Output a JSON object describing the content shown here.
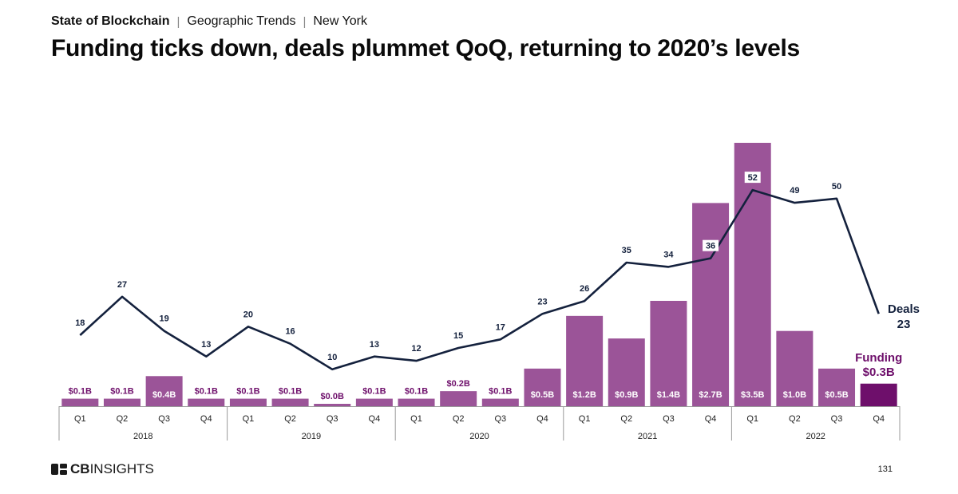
{
  "header": {
    "breadcrumb": [
      "State of Blockchain",
      "Geographic Trends",
      "New York"
    ],
    "title": "Funding ticks down, deals plummet QoQ, returning to 2020’s levels"
  },
  "footer": {
    "logo_bold": "CB",
    "logo_rest": "INSIGHTS",
    "page_number": "131"
  },
  "colors": {
    "bar": "#9b5498",
    "bar_highlight": "#6e0f6b",
    "line": "#14213d",
    "axis": "#9a9a9a",
    "funding_label": "#6e0f6b"
  },
  "chart_data": {
    "type": "bar+line",
    "categories": [
      "Q1",
      "Q2",
      "Q3",
      "Q4",
      "Q1",
      "Q2",
      "Q3",
      "Q4",
      "Q1",
      "Q2",
      "Q3",
      "Q4",
      "Q1",
      "Q2",
      "Q3",
      "Q4",
      "Q1",
      "Q2",
      "Q3",
      "Q4"
    ],
    "years": [
      "2018",
      "2019",
      "2020",
      "2021",
      "2022"
    ],
    "funding": {
      "name": "Funding",
      "unit": "$B",
      "values": [
        0.1,
        0.1,
        0.4,
        0.1,
        0.1,
        0.1,
        0.0,
        0.1,
        0.1,
        0.2,
        0.1,
        0.5,
        1.2,
        0.9,
        1.4,
        2.7,
        3.5,
        1.0,
        0.5,
        0.3
      ],
      "labels": [
        "$0.1B",
        "$0.1B",
        "$0.4B",
        "$0.1B",
        "$0.1B",
        "$0.1B",
        "$0.0B",
        "$0.1B",
        "$0.1B",
        "$0.2B",
        "$0.1B",
        "$0.5B",
        "$1.2B",
        "$0.9B",
        "$1.4B",
        "$2.7B",
        "$3.5B",
        "$1.0B",
        "$0.5B",
        "$0.3B"
      ],
      "latest_label": "Funding",
      "latest_value": "$0.3B"
    },
    "deals": {
      "name": "Deals",
      "values": [
        18,
        27,
        19,
        13,
        20,
        16,
        10,
        13,
        12,
        15,
        17,
        23,
        26,
        35,
        34,
        36,
        52,
        49,
        50,
        23
      ],
      "latest_label": "Deals",
      "latest_value": "23"
    }
  }
}
